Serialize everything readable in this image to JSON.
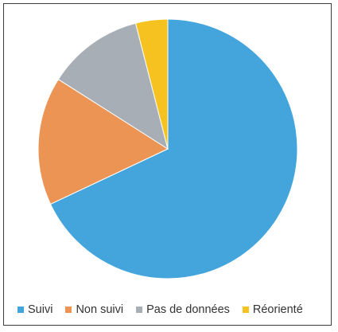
{
  "chart_data": {
    "type": "pie",
    "title": "",
    "categories": [
      "Suivi",
      "Non suivi",
      "Pas de données",
      "Réorienté"
    ],
    "values": [
      68,
      16,
      12,
      4
    ],
    "colors": [
      "#43A5DC",
      "#EC9453",
      "#A7AEB5",
      "#F6C21F"
    ],
    "start_angle_deg": 0,
    "direction": "clockwise",
    "legend_position": "bottom"
  }
}
